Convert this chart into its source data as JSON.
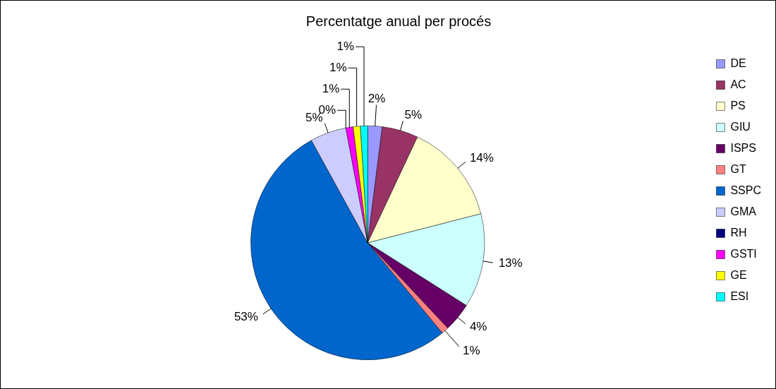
{
  "chart_data": {
    "type": "pie",
    "title": "Percentatge anual per procés",
    "categories": [
      "DE",
      "AC",
      "PS",
      "GIU",
      "ISPS",
      "GT",
      "SSPC",
      "GMA",
      "RH",
      "GSTI",
      "GE",
      "ESI"
    ],
    "values": [
      2,
      5,
      14,
      13,
      4,
      1,
      53,
      5,
      0,
      1,
      1,
      1
    ],
    "value_labels": [
      "2%",
      "5%",
      "14%",
      "13%",
      "4%",
      "1%",
      "53%",
      "5%",
      "0%",
      "1%",
      "1%",
      "1%"
    ],
    "colors": [
      "#9999ff",
      "#993366",
      "#ffffcc",
      "#ccffff",
      "#660066",
      "#ff8080",
      "#0066cc",
      "#ccccff",
      "#000080",
      "#ff00ff",
      "#ffff00",
      "#00ffff"
    ],
    "legend": "right"
  }
}
